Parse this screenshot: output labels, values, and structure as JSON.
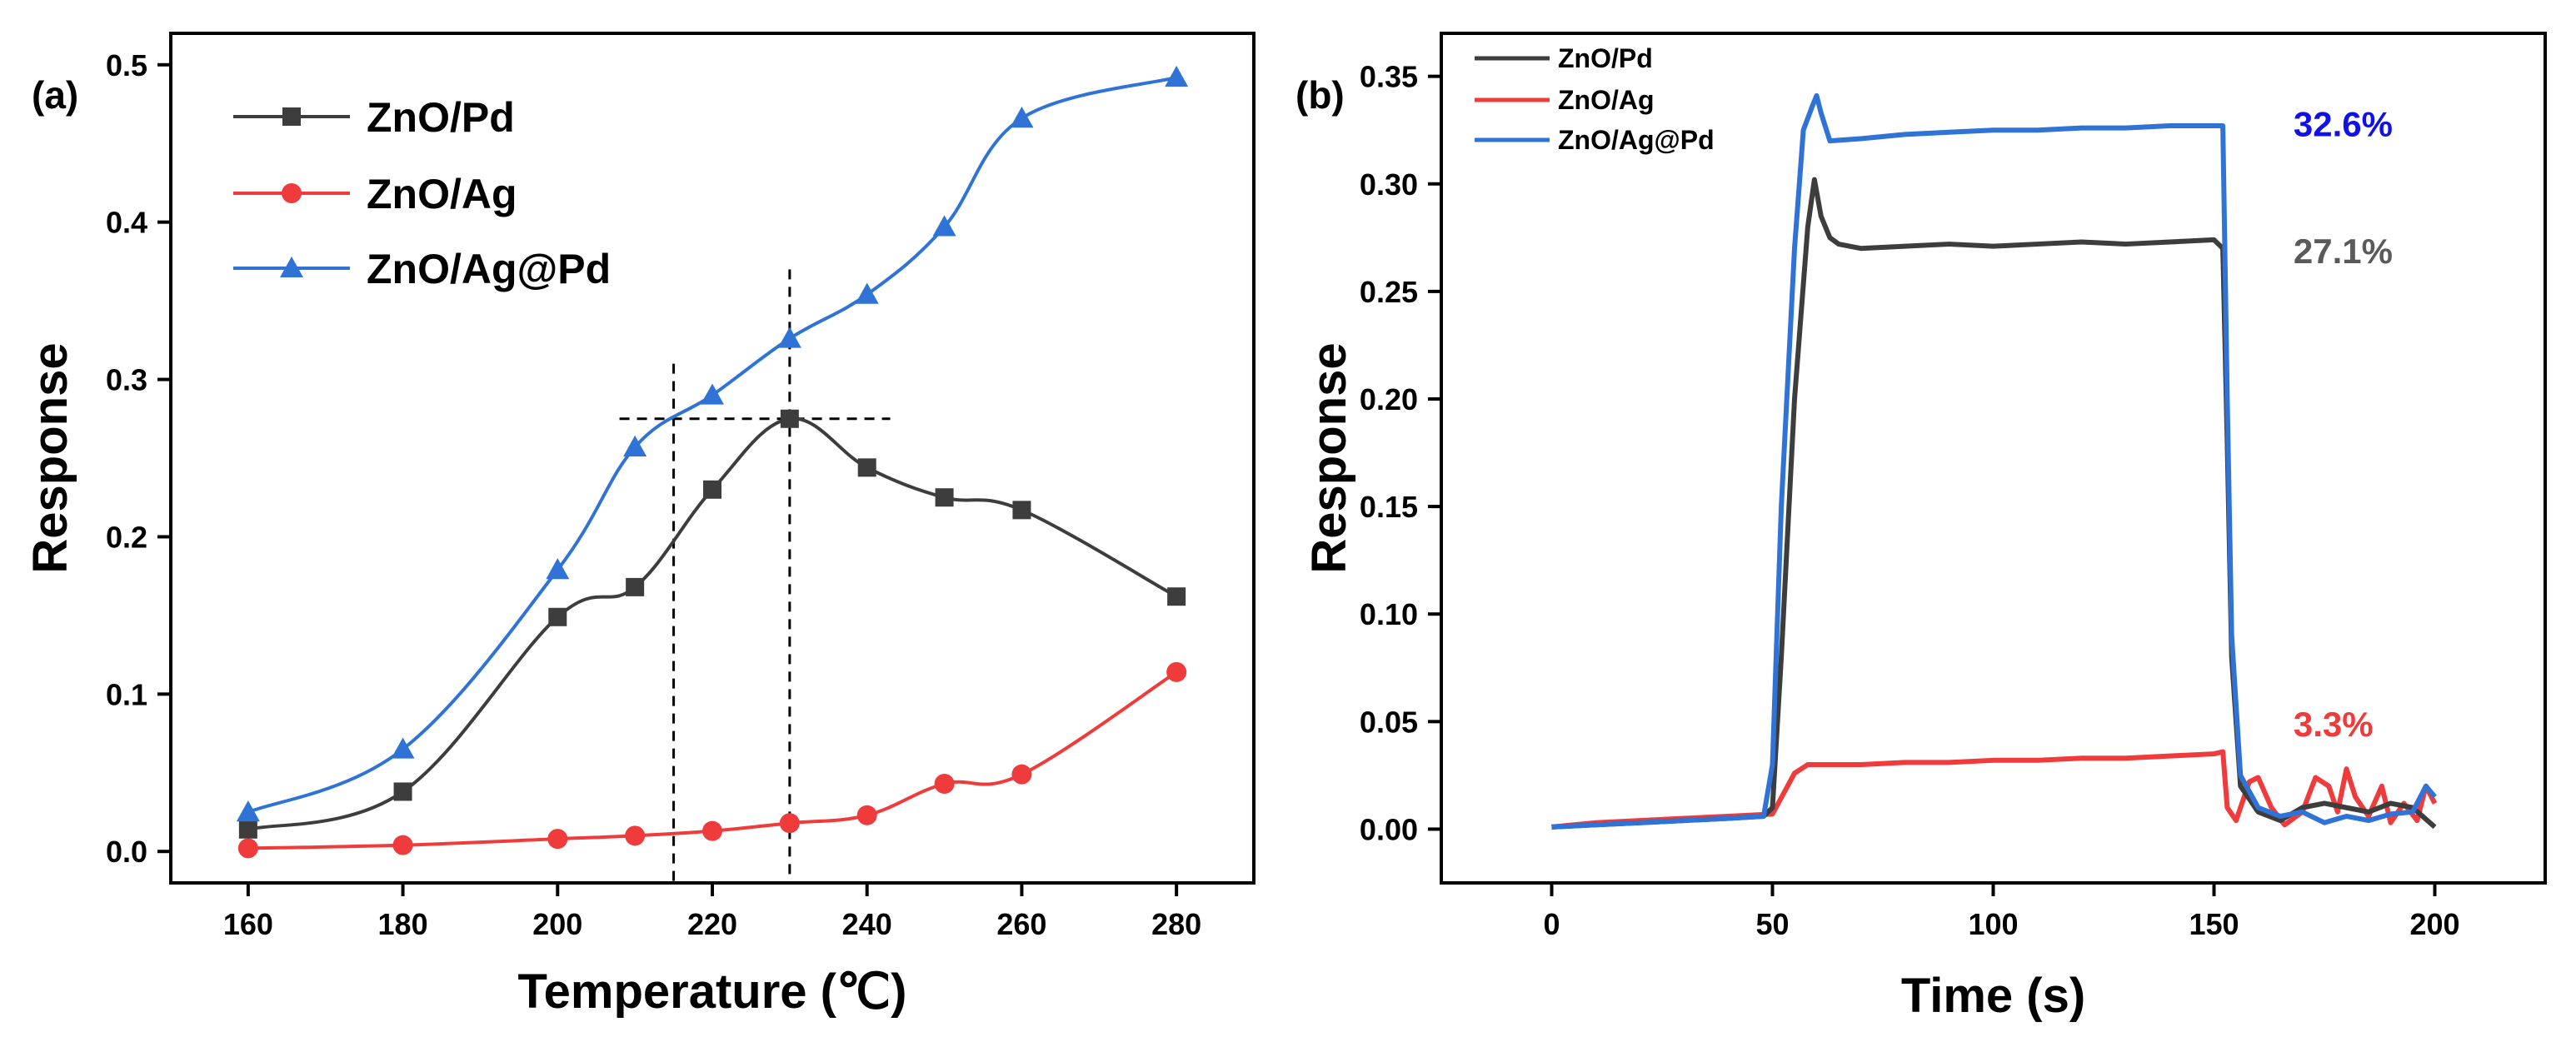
{
  "colors": {
    "black": "#3d3d3d",
    "red": "#ef3b3b",
    "blue": "#2f73d6",
    "blue_label": "#1010e8",
    "gray_label": "#5a5a5a",
    "red_label": "#ef3b3b"
  },
  "chart_data": [
    {
      "id": "a",
      "panel_label": "(a)",
      "type": "line",
      "xlabel": "Temperature (℃)",
      "ylabel": "Response",
      "xlim": [
        150,
        290
      ],
      "ylim": [
        -0.02,
        0.52
      ],
      "xticks": [
        "160",
        "180",
        "200",
        "220",
        "240",
        "260",
        "280"
      ],
      "yticks": [
        "0.0",
        "0.1",
        "0.2",
        "0.3",
        "0.4",
        "0.5"
      ],
      "x": [
        160,
        180,
        200,
        210,
        220,
        230,
        240,
        250,
        260,
        280
      ],
      "series": [
        {
          "name": "ZnO/Pd",
          "marker": "square",
          "color": "#3d3d3d",
          "values": [
            0.014,
            0.038,
            0.149,
            0.168,
            0.23,
            0.275,
            0.244,
            0.225,
            0.217,
            0.162
          ]
        },
        {
          "name": "ZnO/Ag",
          "marker": "circle",
          "color": "#ef3b3b",
          "values": [
            0.002,
            0.004,
            0.008,
            0.01,
            0.013,
            0.018,
            0.023,
            0.043,
            0.049,
            0.114
          ]
        },
        {
          "name": "ZnO/Ag@Pd",
          "marker": "triangle",
          "color": "#2f73d6",
          "values": [
            0.025,
            0.065,
            0.179,
            0.257,
            0.29,
            0.326,
            0.354,
            0.397,
            0.466,
            0.492
          ]
        }
      ],
      "guides": {
        "vertical_x": [
          215,
          230
        ],
        "horizontal_y": 0.275,
        "horizontal_x_range": [
          208,
          243
        ]
      },
      "legend": "top-left"
    },
    {
      "id": "b",
      "panel_label": "(b)",
      "type": "line",
      "xlabel": "Time (s)",
      "ylabel": "Response",
      "xlim": [
        -25,
        225
      ],
      "ylim": [
        -0.025,
        0.37
      ],
      "xticks": [
        "0",
        "50",
        "100",
        "150",
        "200"
      ],
      "yticks": [
        "0.00",
        "0.05",
        "0.10",
        "0.15",
        "0.20",
        "0.25",
        "0.30",
        "0.35"
      ],
      "series": [
        {
          "name": "ZnO/Pd",
          "color": "#3d3d3d",
          "points": [
            [
              0,
              0.001
            ],
            [
              10,
              0.002
            ],
            [
              20,
              0.003
            ],
            [
              30,
              0.004
            ],
            [
              40,
              0.005
            ],
            [
              48,
              0.006
            ],
            [
              50,
              0.01
            ],
            [
              52,
              0.08
            ],
            [
              55,
              0.2
            ],
            [
              58,
              0.28
            ],
            [
              59.5,
              0.302
            ],
            [
              61,
              0.285
            ],
            [
              63,
              0.275
            ],
            [
              65,
              0.272
            ],
            [
              70,
              0.27
            ],
            [
              80,
              0.271
            ],
            [
              90,
              0.272
            ],
            [
              100,
              0.271
            ],
            [
              110,
              0.272
            ],
            [
              120,
              0.273
            ],
            [
              130,
              0.272
            ],
            [
              140,
              0.273
            ],
            [
              150,
              0.274
            ],
            [
              152,
              0.27
            ],
            [
              153,
              0.18
            ],
            [
              154,
              0.08
            ],
            [
              156,
              0.02
            ],
            [
              160,
              0.008
            ],
            [
              165,
              0.004
            ],
            [
              170,
              0.01
            ],
            [
              175,
              0.012
            ],
            [
              180,
              0.01
            ],
            [
              185,
              0.008
            ],
            [
              190,
              0.012
            ],
            [
              195,
              0.01
            ],
            [
              200,
              0.001
            ]
          ]
        },
        {
          "name": "ZnO/Ag",
          "color": "#ef3b3b",
          "points": [
            [
              0,
              0.001
            ],
            [
              10,
              0.003
            ],
            [
              20,
              0.004
            ],
            [
              30,
              0.005
            ],
            [
              40,
              0.006
            ],
            [
              50,
              0.007
            ],
            [
              55,
              0.026
            ],
            [
              58,
              0.03
            ],
            [
              70,
              0.03
            ],
            [
              80,
              0.031
            ],
            [
              90,
              0.031
            ],
            [
              100,
              0.032
            ],
            [
              110,
              0.032
            ],
            [
              120,
              0.033
            ],
            [
              130,
              0.033
            ],
            [
              140,
              0.034
            ],
            [
              150,
              0.035
            ],
            [
              152,
              0.036
            ],
            [
              153,
              0.01
            ],
            [
              155,
              0.004
            ],
            [
              158,
              0.022
            ],
            [
              160,
              0.024
            ],
            [
              163,
              0.01
            ],
            [
              166,
              0.002
            ],
            [
              170,
              0.008
            ],
            [
              173,
              0.024
            ],
            [
              176,
              0.02
            ],
            [
              178,
              0.008
            ],
            [
              180,
              0.028
            ],
            [
              182,
              0.015
            ],
            [
              185,
              0.006
            ],
            [
              188,
              0.02
            ],
            [
              190,
              0.003
            ],
            [
              193,
              0.012
            ],
            [
              196,
              0.004
            ],
            [
              198,
              0.02
            ],
            [
              200,
              0.012
            ]
          ]
        },
        {
          "name": "ZnO/Ag@Pd",
          "color": "#2f73d6",
          "points": [
            [
              0,
              0.001
            ],
            [
              10,
              0.002
            ],
            [
              20,
              0.003
            ],
            [
              30,
              0.004
            ],
            [
              40,
              0.005
            ],
            [
              48,
              0.006
            ],
            [
              50,
              0.03
            ],
            [
              52,
              0.15
            ],
            [
              55,
              0.27
            ],
            [
              57,
              0.325
            ],
            [
              59,
              0.336
            ],
            [
              60,
              0.341
            ],
            [
              61,
              0.333
            ],
            [
              63,
              0.32
            ],
            [
              70,
              0.321
            ],
            [
              80,
              0.323
            ],
            [
              90,
              0.324
            ],
            [
              100,
              0.325
            ],
            [
              110,
              0.325
            ],
            [
              120,
              0.326
            ],
            [
              130,
              0.326
            ],
            [
              140,
              0.327
            ],
            [
              150,
              0.327
            ],
            [
              152,
              0.327
            ],
            [
              153,
              0.2
            ],
            [
              154,
              0.09
            ],
            [
              156,
              0.025
            ],
            [
              160,
              0.01
            ],
            [
              165,
              0.006
            ],
            [
              170,
              0.008
            ],
            [
              175,
              0.003
            ],
            [
              180,
              0.006
            ],
            [
              185,
              0.004
            ],
            [
              190,
              0.007
            ],
            [
              195,
              0.008
            ],
            [
              198,
              0.02
            ],
            [
              200,
              0.015
            ]
          ]
        }
      ],
      "annotations": [
        {
          "text": "32.6%",
          "x": 168,
          "y": 0.328,
          "color": "#1010e8"
        },
        {
          "text": "27.1%",
          "x": 168,
          "y": 0.269,
          "color": "#5a5a5a"
        },
        {
          "text": "3.3%",
          "x": 168,
          "y": 0.049,
          "color": "#ef3b3b"
        }
      ],
      "legend": "top-left"
    }
  ]
}
